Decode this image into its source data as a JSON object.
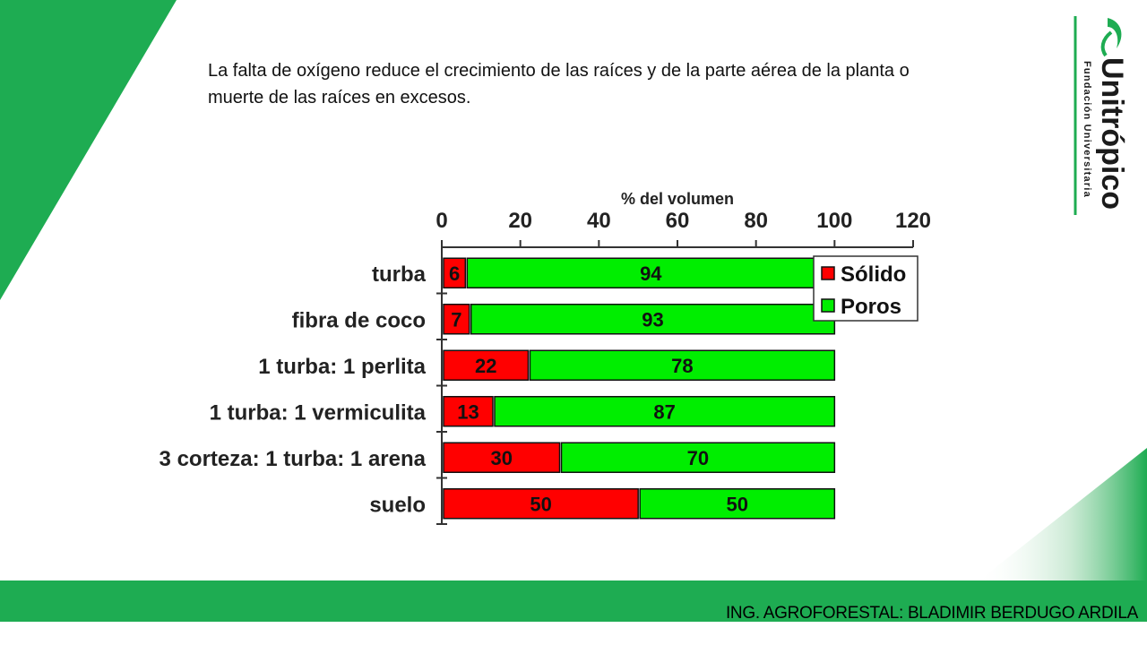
{
  "slide": {
    "text": "La falta de oxígeno reduce el crecimiento de las raíces y de la parte aérea de la planta o muerte de las raíces en excesos.",
    "footer": "ING. AGROFORESTAL: BLADIMIR BERDUGO ARDILA",
    "logo": {
      "name": "Unitrópico",
      "subtitle": "Fundación Universitaria"
    }
  },
  "colors": {
    "green_band": "#1eac52",
    "solid": "#ff0000",
    "pores": "#00ee00"
  },
  "chart_data": {
    "type": "bar",
    "orientation": "horizontal",
    "stacked": true,
    "xlabel": "% del volumen",
    "xlim": [
      0,
      120
    ],
    "xticks": [
      0,
      20,
      40,
      60,
      80,
      100,
      120
    ],
    "categories": [
      "turba",
      "fibra de coco",
      "1 turba: 1 perlita",
      "1 turba: 1 vermiculita",
      "3 corteza: 1 turba: 1 arena",
      "suelo"
    ],
    "series": [
      {
        "name": "Sólido",
        "color": "#ff0000",
        "values": [
          6,
          7,
          22,
          13,
          30,
          50
        ]
      },
      {
        "name": "Poros",
        "color": "#00ee00",
        "values": [
          94,
          93,
          78,
          87,
          70,
          50
        ]
      }
    ],
    "legend": "top-right"
  }
}
